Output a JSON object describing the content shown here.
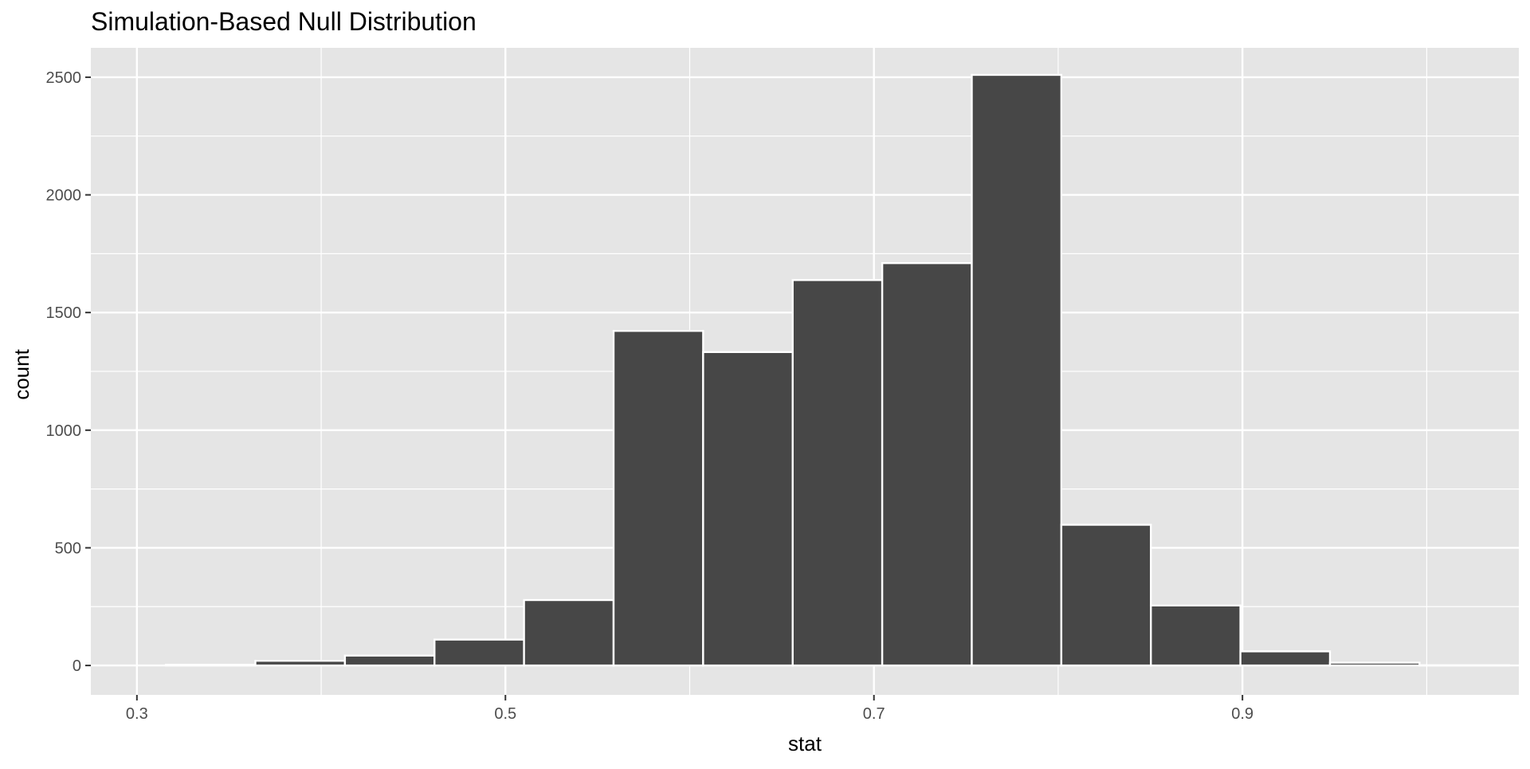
{
  "chart_data": {
    "type": "bar",
    "title": "Simulation-Based Null Distribution",
    "xlabel": "stat",
    "ylabel": "count",
    "xlim": [
      0.275,
      1.05
    ],
    "ylim": [
      -125,
      2625
    ],
    "x_ticks": [
      0.3,
      0.5,
      0.7,
      0.9
    ],
    "x_tick_labels": [
      "0.3",
      "0.5",
      "0.7",
      "0.9"
    ],
    "y_ticks": [
      0,
      500,
      1000,
      1500,
      2000,
      2500
    ],
    "y_tick_labels": [
      "0",
      "500",
      "1000",
      "1500",
      "2000",
      "2500"
    ],
    "x_minor_gridlines": [
      0.4,
      0.6,
      0.8,
      1.0
    ],
    "y_minor_gridlines": [
      250,
      750,
      1250,
      1750,
      2250
    ],
    "bin_width": 0.0486,
    "bins": [
      {
        "start": 0.3157,
        "end": 0.3643,
        "count": 3
      },
      {
        "start": 0.3643,
        "end": 0.4129,
        "count": 20
      },
      {
        "start": 0.4129,
        "end": 0.4615,
        "count": 42
      },
      {
        "start": 0.4615,
        "end": 0.5101,
        "count": 110
      },
      {
        "start": 0.5101,
        "end": 0.5587,
        "count": 278
      },
      {
        "start": 0.5587,
        "end": 0.6073,
        "count": 1422
      },
      {
        "start": 0.6073,
        "end": 0.6559,
        "count": 1332
      },
      {
        "start": 0.6559,
        "end": 0.7045,
        "count": 1638
      },
      {
        "start": 0.7045,
        "end": 0.7531,
        "count": 1710
      },
      {
        "start": 0.7531,
        "end": 0.8017,
        "count": 2510
      },
      {
        "start": 0.8017,
        "end": 0.8503,
        "count": 598
      },
      {
        "start": 0.8503,
        "end": 0.8989,
        "count": 255
      },
      {
        "start": 0.8989,
        "end": 0.9475,
        "count": 60
      },
      {
        "start": 0.9475,
        "end": 0.9961,
        "count": 12
      },
      {
        "start": 0.9961,
        "end": 1.0447,
        "count": 1
      }
    ],
    "grid": true,
    "legend": "none",
    "colors": {
      "panel_background": "#e5e5e5",
      "gridline": "#ffffff",
      "bar_fill": "#474747",
      "bar_outline": "#ffffff",
      "text": "#000000",
      "tick_text": "#4d4d4d",
      "tick_mark": "#333333"
    }
  }
}
